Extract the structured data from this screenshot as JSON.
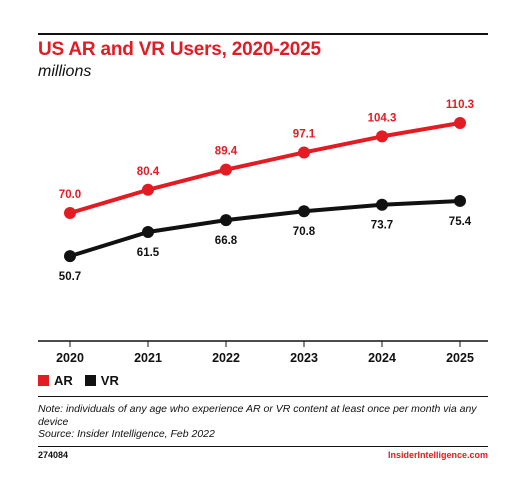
{
  "header": {
    "title": "US AR and VR Users, 2020-2025",
    "subtitle": "millions"
  },
  "chart_data": {
    "type": "line",
    "title": "US AR and VR Users, 2020-2025",
    "subtitle": "millions",
    "categories": [
      "2020",
      "2021",
      "2022",
      "2023",
      "2024",
      "2025"
    ],
    "series": [
      {
        "name": "AR",
        "color": "#e31b23",
        "values": [
          70.0,
          80.4,
          89.4,
          97.1,
          104.3,
          110.3
        ],
        "labels": [
          "70.0",
          "80.4",
          "89.4",
          "97.1",
          "104.3",
          "110.3"
        ]
      },
      {
        "name": "VR",
        "color": "#111111",
        "values": [
          50.7,
          61.5,
          66.8,
          70.8,
          73.7,
          75.4
        ],
        "labels": [
          "50.7",
          "61.5",
          "66.8",
          "70.8",
          "73.7",
          "75.4"
        ]
      }
    ],
    "ylim": [
      40,
      125
    ],
    "grid": false,
    "legend_position": "bottom-left"
  },
  "legend": {
    "ar_label": "AR",
    "vr_label": "VR"
  },
  "note": {
    "line": "Note: individuals of any age who experience AR or VR content at least once per month via any device",
    "source": "Source: Insider Intelligence, Feb 2022"
  },
  "footer": {
    "id": "274084",
    "brand": "InsiderIntelligence.com"
  }
}
